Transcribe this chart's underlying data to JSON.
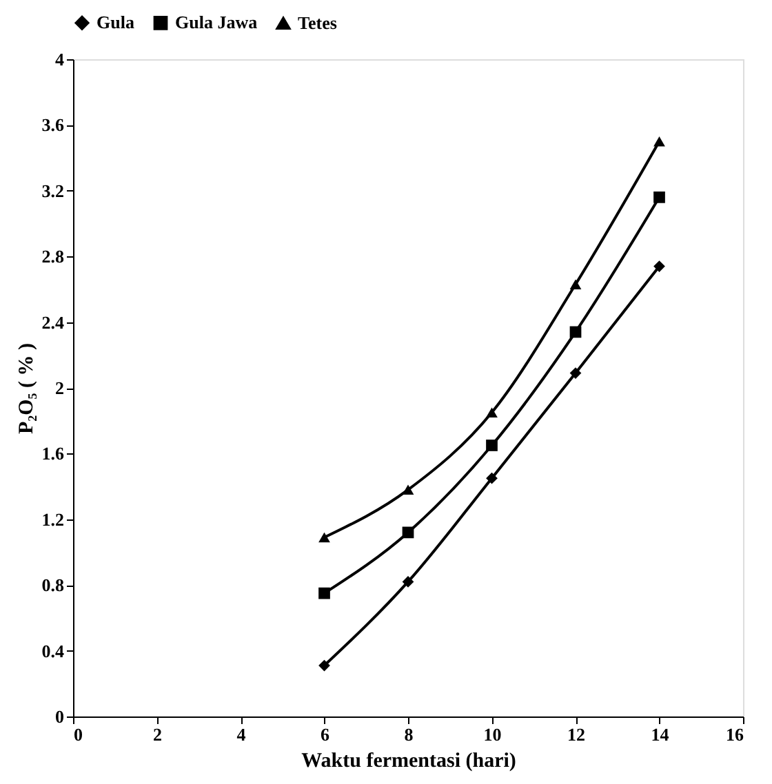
{
  "chart_data": {
    "type": "line",
    "xlabel": "Waktu fermentasi (hari)",
    "ylabel": "P₂O₅ ( % )",
    "x": [
      6,
      8,
      10,
      12,
      14
    ],
    "series": [
      {
        "name": "Gula",
        "color": "#000000",
        "marker": "diamond",
        "values": [
          0.31,
          0.82,
          1.45,
          2.09,
          2.74
        ]
      },
      {
        "name": "Gula Jawa",
        "color": "#000000",
        "marker": "square",
        "values": [
          0.75,
          1.12,
          1.65,
          2.34,
          3.16
        ]
      },
      {
        "name": "Tetes",
        "color": "#000000",
        "marker": "triangle",
        "values": [
          1.09,
          1.38,
          1.85,
          2.63,
          3.5
        ]
      }
    ],
    "xlim": [
      0,
      16
    ],
    "xticks": [
      0,
      2,
      4,
      6,
      8,
      10,
      12,
      14,
      16
    ],
    "ylim": [
      0,
      4
    ],
    "yticks": [
      0,
      0.4,
      0.8,
      1.2,
      1.6,
      2,
      2.4,
      2.8,
      3.2,
      3.6,
      4
    ],
    "grid": false,
    "legend": "top",
    "line_style": "solid"
  }
}
